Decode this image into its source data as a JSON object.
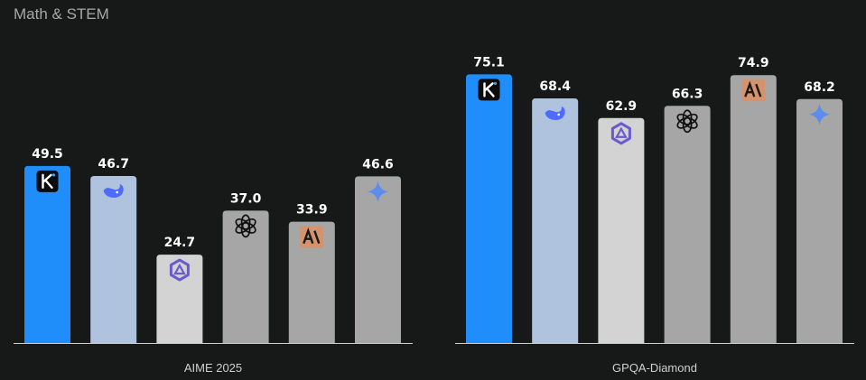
{
  "section_title": "Math & STEM",
  "model_colors": {
    "kimi": "#1f8efa",
    "deepseek": "#b0c3de",
    "qwen": "#d3d3d3",
    "openai": "#a6a6a6",
    "anthropic": "#a6a6a6",
    "gemini": "#a6a6a6"
  },
  "chart_data": [
    {
      "type": "bar",
      "title": "",
      "xlabel": "AIME 2025",
      "ylabel": "",
      "ylim": [
        0,
        80
      ],
      "grid": false,
      "categories": [
        "kimi",
        "deepseek",
        "qwen",
        "openai",
        "anthropic",
        "gemini"
      ],
      "values": [
        49.5,
        46.7,
        24.7,
        37.0,
        33.9,
        46.6
      ],
      "value_labels": [
        "49.5",
        "46.7",
        "24.7",
        "37.0",
        "33.9",
        "46.6"
      ],
      "icons": [
        "kimi-logo-icon",
        "deepseek-whale-icon",
        "qwen-hexagon-icon",
        "openai-knot-icon",
        "anthropic-logo-icon",
        "gemini-sparkle-icon"
      ]
    },
    {
      "type": "bar",
      "title": "",
      "xlabel": "GPQA-Diamond",
      "ylabel": "",
      "ylim": [
        0,
        80
      ],
      "grid": false,
      "categories": [
        "kimi",
        "deepseek",
        "qwen",
        "openai",
        "anthropic",
        "gemini"
      ],
      "values": [
        75.1,
        68.4,
        62.9,
        66.3,
        74.9,
        68.2
      ],
      "value_labels": [
        "75.1",
        "68.4",
        "62.9",
        "66.3",
        "74.9",
        "68.2"
      ],
      "icons": [
        "kimi-logo-icon",
        "deepseek-whale-icon",
        "qwen-hexagon-icon",
        "openai-knot-icon",
        "anthropic-logo-icon",
        "gemini-sparkle-icon"
      ]
    }
  ]
}
